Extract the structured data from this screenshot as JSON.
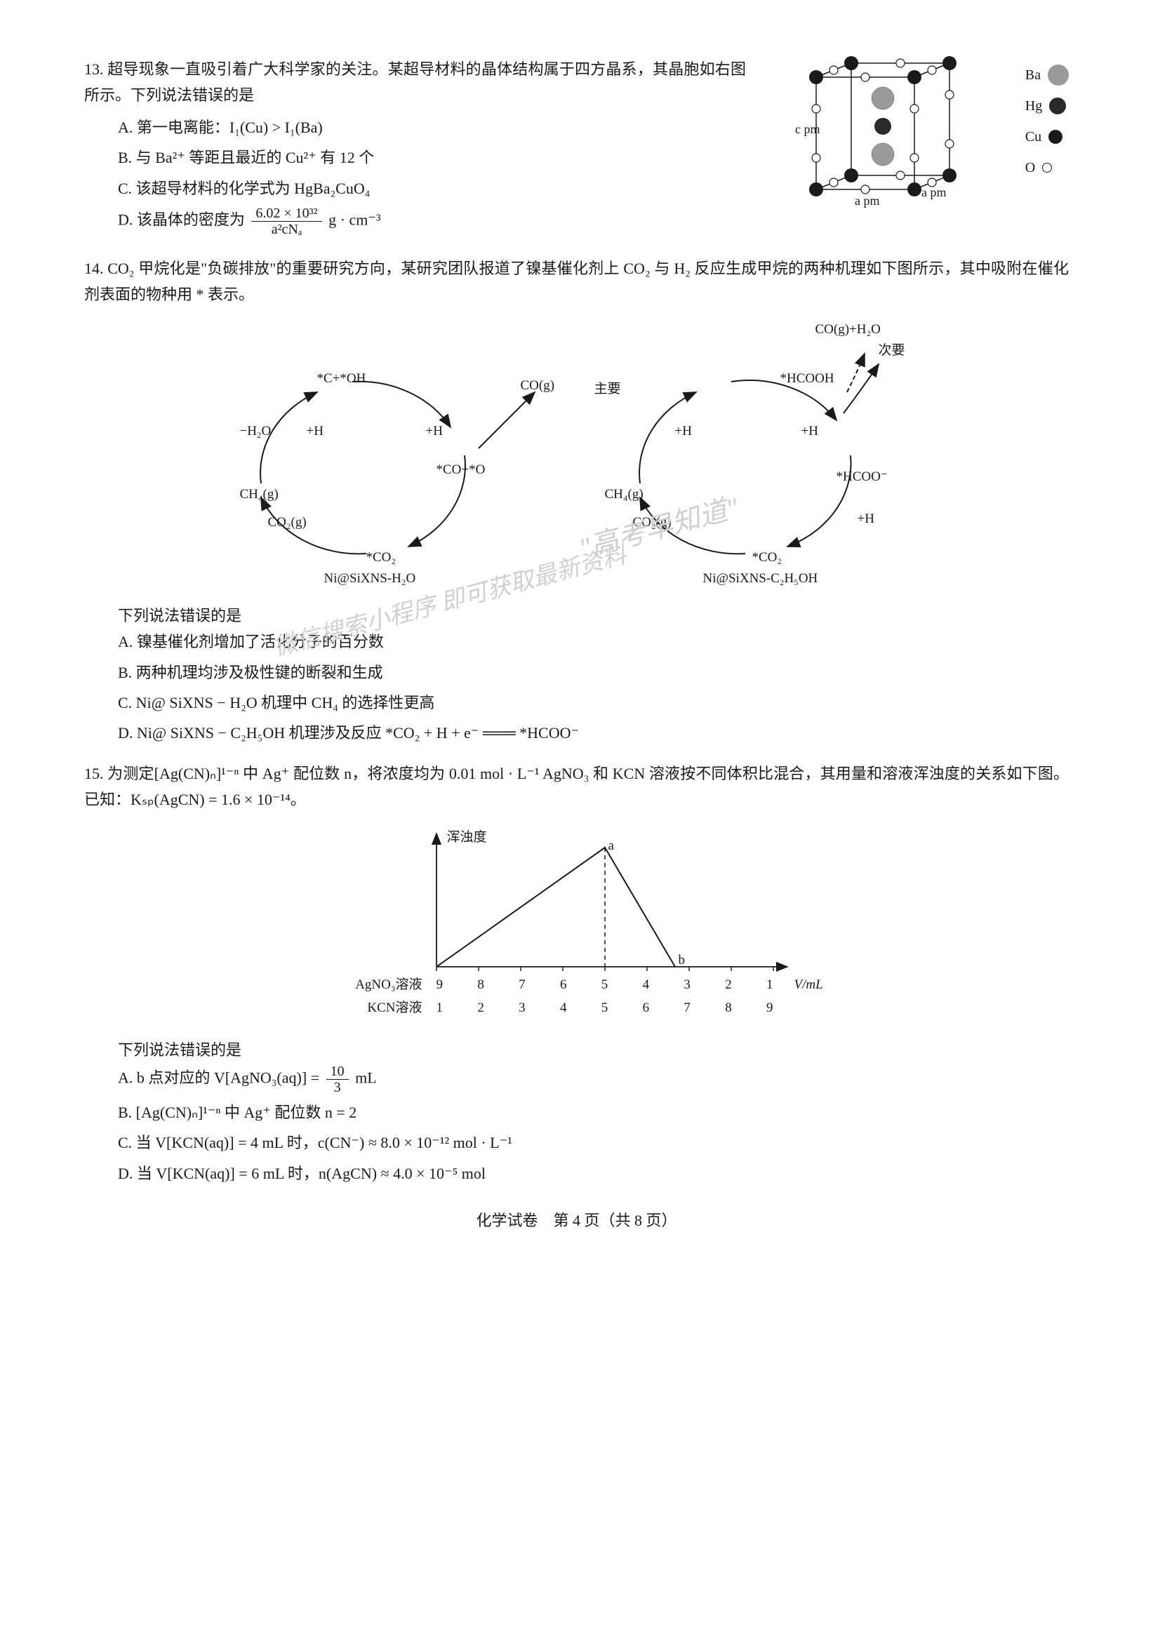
{
  "q13": {
    "number": "13.",
    "stem": "超导现象一直吸引着广大科学家的关注。某超导材料的晶体结构属于四方晶系，其晶胞如右图所示。下列说法错误的是",
    "optA": "A. 第一电离能：I₁(Cu) > I₁(Ba)",
    "optB": "B. 与 Ba²⁺ 等距且最近的 Cu²⁺ 有 12 个",
    "optC": "C. 该超导材料的化学式为 HgBa₂CuO₄",
    "optD_prefix": "D. 该晶体的密度为",
    "optD_frac_num": "6.02 × 10³²",
    "optD_frac_den": "a²cNₐ",
    "optD_suffix": " g · cm⁻³",
    "legend": {
      "ba": "Ba",
      "hg": "Hg",
      "cu": "Cu",
      "o": "O"
    },
    "dims": {
      "c": "c pm",
      "a1": "a pm",
      "a2": "a pm"
    },
    "crystal": {
      "ba_color": "#808080",
      "hg_color": "#2a2a2a",
      "cu_color": "#1a1a1a",
      "o_color": "#ffffff",
      "o_stroke": "#1a1a1a",
      "ba_radius": 16,
      "hg_radius": 12,
      "cu_radius": 10,
      "o_radius": 6
    }
  },
  "q14": {
    "number": "14.",
    "stem": "CO₂ 甲烷化是\"负碳排放\"的重要研究方向，某研究团队报道了镍基催化剂上 CO₂ 与 H₂ 反应生成甲烷的两种机理如下图所示，其中吸附在催化剂表面的物种用 * 表示。",
    "labels": {
      "top_right1": "CO(g)+H₂O",
      "top_right2": "次要",
      "c_oh": "*C+*OH",
      "hcooh": "*HCOOH",
      "co_g": "CO(g)",
      "main": "主要",
      "h2o": "−H₂O",
      "plusH": "+H",
      "co_o": "*CO+*O",
      "ch4_l": "CH₄(g)",
      "ch4_r": "CH₄(g)",
      "hcoo": "*HCOO⁻",
      "co2_l": "CO₂(g)",
      "co2_r": "CO₂(g)",
      "star_co2_l": "*CO₂",
      "star_co2_r": "*CO₂",
      "cat_l": "Ni@SiXNS-H₂O",
      "cat_r": "Ni@SiXNS-C₂H₅OH"
    },
    "conclusion": "下列说法错误的是",
    "optA": "A. 镍基催化剂增加了活化分子的百分数",
    "optB": "B. 两种机理均涉及极性键的断裂和生成",
    "optC": "C. Ni@ SiXNS − H₂O 机理中 CH₄ 的选择性更高",
    "optD": "D. Ni@ SiXNS − C₂H₅OH 机理涉及反应 *CO₂ + H + e⁻ ═══ *HCOO⁻",
    "watermark1": "\"高考早知道\"",
    "watermark2": "微信搜索小程序  即可获取最新资料"
  },
  "q15": {
    "number": "15.",
    "stem": "为测定[Ag(CN)ₙ]¹⁻ⁿ 中 Ag⁺ 配位数 n，将浓度均为 0.01 mol · L⁻¹ AgNO₃ 和 KCN 溶液按不同体积比混合，其用量和溶液浑浊度的关系如下图。已知：Kₛₚ(AgCN) = 1.6 × 10⁻¹⁴。",
    "chart": {
      "ylabel": "浑浊度",
      "point_a": "a",
      "point_b": "b",
      "xlabel": "V/mL",
      "row1_label": "AgNO₃溶液",
      "row2_label": "KCN溶液",
      "x_agno3": [
        "9",
        "8",
        "7",
        "6",
        "5",
        "4",
        "3",
        "2",
        "1"
      ],
      "x_kcn": [
        "1",
        "2",
        "3",
        "4",
        "5",
        "6",
        "7",
        "8",
        "9"
      ],
      "line_color": "#1a1a1a",
      "bg_color": "#ffffff"
    },
    "conclusion": "下列说法错误的是",
    "optA_prefix": "A. b 点对应的 V[AgNO₃(aq)] =",
    "optA_frac_num": "10",
    "optA_frac_den": "3",
    "optA_suffix": " mL",
    "optB": "B. [Ag(CN)ₙ]¹⁻ⁿ 中 Ag⁺ 配位数 n = 2",
    "optC": "C. 当 V[KCN(aq)] = 4 mL 时，c(CN⁻) ≈ 8.0 × 10⁻¹² mol · L⁻¹",
    "optD": "D. 当 V[KCN(aq)] = 6 mL 时，n(AgCN) ≈ 4.0 × 10⁻⁵ mol"
  },
  "footer": "化学试卷　第 4 页（共 8 页）"
}
